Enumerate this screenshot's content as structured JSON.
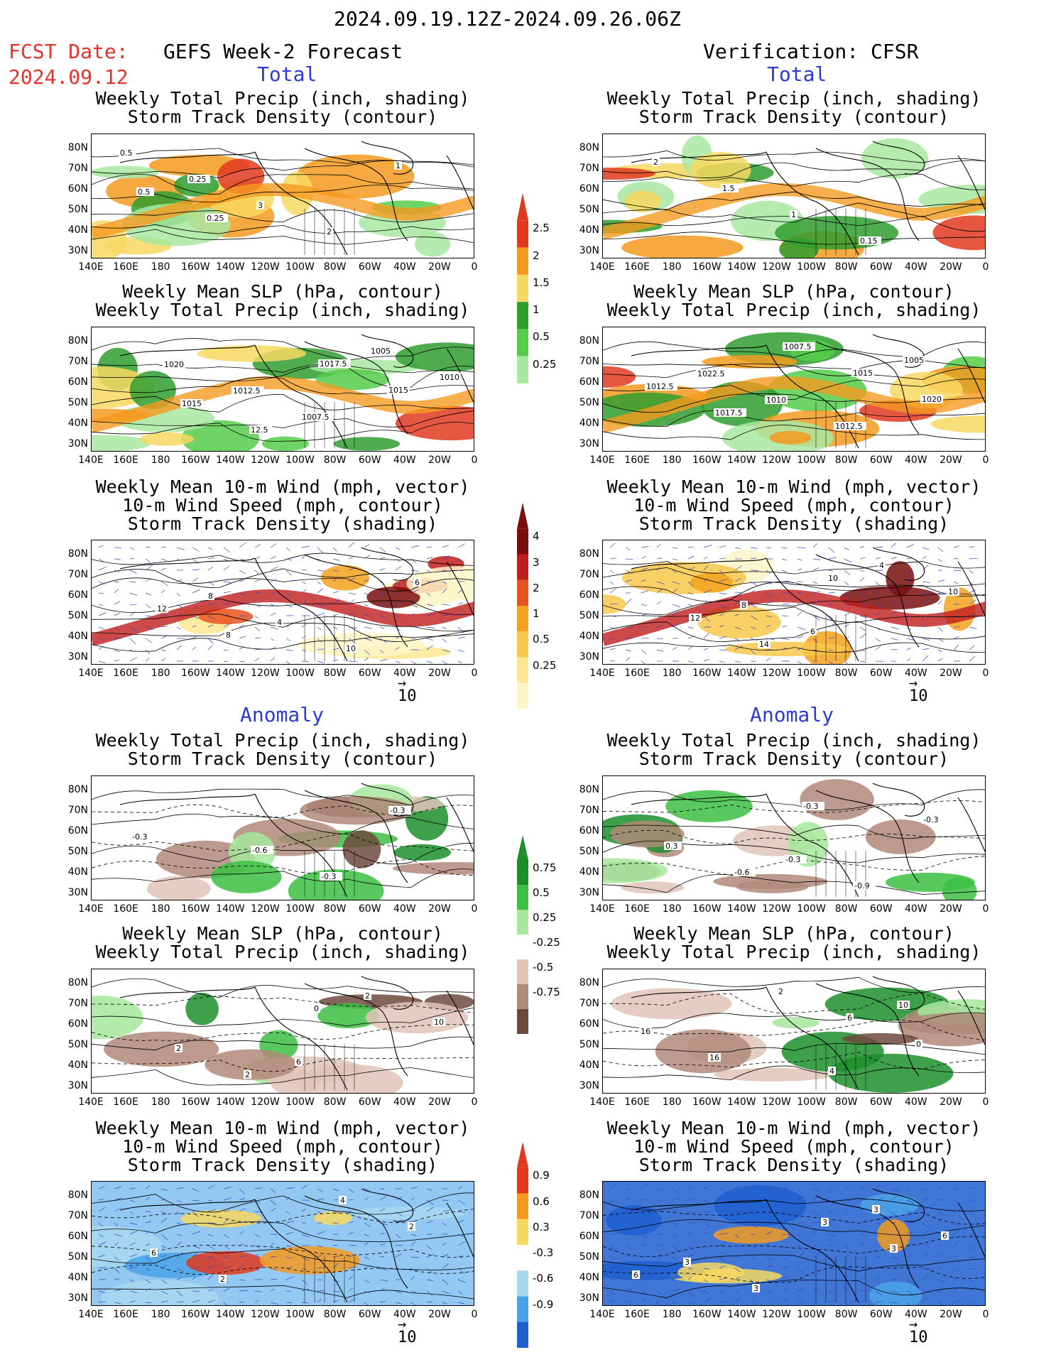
{
  "header": {
    "period": "2024.09.19.12Z-2024.09.26.06Z",
    "fcst_label": "FCST Date:",
    "fcst_date": "2024.09.12",
    "left_title": "GEFS Week-2 Forecast",
    "right_title": "Verification: CFSR",
    "total_label": "Total",
    "anomaly_label": "Anomaly"
  },
  "panel_titles": {
    "precip_storm": [
      "Weekly Total Precip (inch, shading)",
      "Storm Track Density (contour)"
    ],
    "slp_precip": [
      "Weekly Mean SLP (hPa, contour)",
      "Weekly Total Precip (inch, shading)"
    ],
    "wind_storm": [
      "Weekly Mean 10-m Wind (mph, vector)",
      "10-m Wind Speed (mph, contour)",
      "Storm Track Density (shading)"
    ]
  },
  "axes": {
    "lat_labels": [
      "80N",
      "70N",
      "60N",
      "50N",
      "40N",
      "30N"
    ],
    "lon_labels": [
      "140E",
      "160E",
      "180",
      "160W",
      "140W",
      "120W",
      "100W",
      "80W",
      "60W",
      "40W",
      "20W",
      "0"
    ]
  },
  "wind_ref_arrow": "10",
  "colorbars": {
    "precip_total": {
      "labels": [
        "2.5",
        "2",
        "1.5",
        "1",
        "0.5",
        "0.25"
      ],
      "colors": [
        "#e03a1e",
        "#f59a1f",
        "#f7d860",
        "#2f9e2f",
        "#55cc4a",
        "#a8e8a0"
      ]
    },
    "storm_total": {
      "labels": [
        "4",
        "3",
        "2",
        "1",
        "0.5",
        "0.25"
      ],
      "colors": [
        "#7a0e0e",
        "#c01d1d",
        "#e8521e",
        "#f5a21f",
        "#f7c84a",
        "#fbe890",
        "#fdf6c8"
      ]
    },
    "precip_anom": {
      "labels": [
        "0.75",
        "0.5",
        "0.25",
        "-0.25",
        "-0.5",
        "-0.75"
      ],
      "colors": [
        "#1c8f2a",
        "#3cc043",
        "#a6e89c",
        "#ffffff",
        "#e2c4b9",
        "#b08a7a",
        "#6e4a3e"
      ]
    },
    "storm_anom": {
      "labels": [
        "0.9",
        "0.6",
        "0.3",
        "-0.3",
        "-0.6",
        "-0.9"
      ],
      "colors": [
        "#e03a1e",
        "#f59a1f",
        "#f7d860",
        "#ffffff",
        "#a8d8f0",
        "#4aa3e8",
        "#1f5fd0"
      ]
    }
  },
  "contour_labels": {
    "l1": [
      "0.5",
      "0.25",
      "3",
      "2",
      "1",
      "0.5",
      "0.25"
    ],
    "r1": [
      "2",
      "1.5",
      "1",
      "0.15"
    ],
    "l2": [
      "1020",
      "1012.5",
      "1007.5",
      "1005",
      "1010",
      "1015",
      "12.5",
      "1017.5",
      "1015"
    ],
    "r2": [
      "1022.5",
      "1010",
      "1012.5",
      "1005",
      "1012.5",
      "1017.5",
      "1007.5",
      "1015",
      "1020"
    ],
    "l3": [
      "8",
      "4",
      "10",
      "6",
      "12",
      "8"
    ],
    "r3": [
      "8",
      "6",
      "4",
      "10",
      "12",
      "14",
      "10"
    ],
    "l4": [
      "-0.6",
      "-0.3",
      "-0.3",
      "-0.3"
    ],
    "r4": [
      "-0.3",
      "-0.9",
      "-0.3",
      "0.3",
      "-0.6",
      "-0.3"
    ],
    "l5": [
      "6",
      "2",
      "10",
      "2",
      "2",
      "0"
    ],
    "r5": [
      "4",
      "10",
      "16",
      "16",
      "2",
      "6",
      "0"
    ],
    "l6": [
      "4",
      "2",
      "6",
      "2"
    ],
    "r6": [
      "3",
      "6",
      "3",
      "3",
      "3",
      "3",
      "6"
    ]
  }
}
